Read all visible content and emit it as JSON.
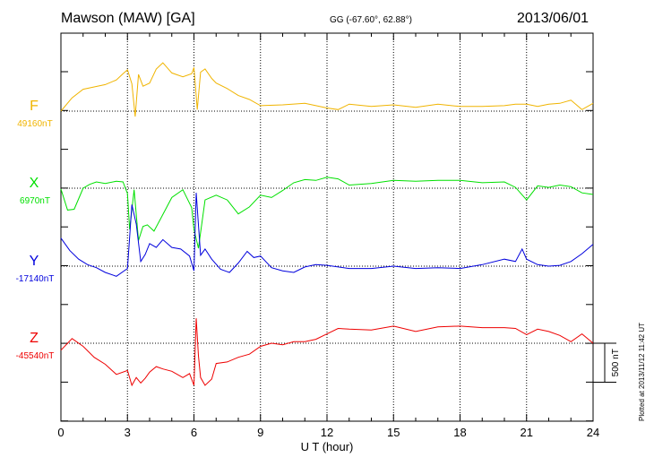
{
  "header": {
    "station": "Mawson (MAW)  [GA]",
    "coords": "GG (-67.60°,  62.88°)",
    "date": "2013/06/01"
  },
  "plotted_note": "Plotted at 2013/11/12 11:42 UT",
  "colors": {
    "F": "#f0b400",
    "X": "#00e000",
    "Y": "#0000dd",
    "Z": "#ee0000",
    "axis": "#000000"
  },
  "chart_data": {
    "type": "line",
    "title": "Mawson (MAW)  [GA]",
    "xlabel": "U T (hour)",
    "ylabel": "",
    "xlim": [
      0,
      24
    ],
    "x_ticks": [
      0,
      3,
      6,
      9,
      12,
      15,
      18,
      21,
      24
    ],
    "x_tick_labels": [
      "0",
      "3",
      "6",
      "9",
      "12",
      "15",
      "18",
      "21",
      "24"
    ],
    "scale_bar": {
      "label": "500 nT",
      "value_nT": 500
    },
    "grid": "dotted",
    "y_unit_nT_per_panel": 1000,
    "series": [
      {
        "name": "F",
        "baseline_label": "49160nT",
        "baseline_nT": 49160,
        "x": [
          0,
          0.5,
          1,
          1.5,
          2,
          2.5,
          2.8,
          3,
          3.2,
          3.35,
          3.5,
          3.7,
          4,
          4.3,
          4.6,
          5,
          5.5,
          5.9,
          6,
          6.15,
          6.3,
          6.5,
          6.8,
          7,
          7.5,
          8,
          8.5,
          9,
          10,
          11,
          12,
          12.5,
          13,
          14,
          15,
          16,
          17,
          18,
          19,
          20,
          20.5,
          21,
          21.5,
          22,
          22.5,
          23,
          23.5,
          24
        ],
        "y": [
          49160,
          49330,
          49440,
          49470,
          49500,
          49560,
          49640,
          49690,
          49510,
          49090,
          49630,
          49480,
          49520,
          49700,
          49780,
          49650,
          49600,
          49640,
          49720,
          49180,
          49660,
          49700,
          49580,
          49520,
          49450,
          49360,
          49310,
          49230,
          49240,
          49260,
          49200,
          49180,
          49250,
          49220,
          49240,
          49210,
          49250,
          49220,
          49220,
          49230,
          49250,
          49250,
          49220,
          49250,
          49260,
          49300,
          49180,
          49260
        ]
      },
      {
        "name": "X",
        "baseline_label": "6970nT",
        "baseline_nT": 6970,
        "x": [
          0,
          0.3,
          0.6,
          1,
          1.3,
          1.6,
          2,
          2.5,
          2.8,
          3,
          3.1,
          3.3,
          3.5,
          3.7,
          3.9,
          4.2,
          4.5,
          5,
          5.5,
          5.9,
          6,
          6.2,
          6.5,
          7,
          7.5,
          8,
          8.5,
          9,
          9.5,
          10,
          10.5,
          11,
          11.5,
          12,
          12.5,
          13,
          14,
          15,
          16,
          17,
          18,
          19,
          20,
          20.5,
          21,
          21.5,
          22,
          22.5,
          23,
          23.5,
          24
        ],
        "y": [
          6960,
          6690,
          6700,
          6970,
          7020,
          7050,
          7030,
          7060,
          7050,
          6900,
          6440,
          6950,
          6300,
          6480,
          6500,
          6420,
          6580,
          6850,
          6950,
          6720,
          6440,
          6200,
          6820,
          6880,
          6820,
          6640,
          6730,
          6880,
          6850,
          6940,
          7040,
          7080,
          7070,
          7110,
          7090,
          7010,
          7030,
          7070,
          7060,
          7070,
          7070,
          7040,
          7050,
          6980,
          6820,
          7000,
          6980,
          7010,
          6990,
          6910,
          6890
        ]
      },
      {
        "name": "Y",
        "baseline_label": "-17140nT",
        "baseline_nT": -17140,
        "x": [
          0,
          0.4,
          0.8,
          1.2,
          1.6,
          2,
          2.5,
          3,
          3.2,
          3.4,
          3.6,
          3.8,
          4,
          4.3,
          4.6,
          5,
          5.4,
          5.8,
          6,
          6.1,
          6.3,
          6.5,
          6.8,
          7.2,
          7.6,
          8,
          8.4,
          8.7,
          9,
          9.5,
          10,
          10.5,
          11,
          11.5,
          12,
          13,
          14,
          15,
          16,
          17,
          18,
          19,
          20,
          20.5,
          20.8,
          21,
          21.5,
          22,
          22.5,
          23,
          23.5,
          24
        ],
        "y": [
          -16780,
          -16940,
          -17050,
          -17120,
          -17160,
          -17220,
          -17270,
          -17170,
          -16350,
          -16600,
          -17080,
          -16990,
          -16850,
          -16900,
          -16800,
          -16900,
          -16920,
          -17010,
          -17200,
          -16200,
          -17000,
          -16920,
          -17050,
          -17180,
          -17220,
          -17100,
          -16950,
          -17030,
          -17010,
          -17160,
          -17200,
          -17220,
          -17150,
          -17120,
          -17130,
          -17170,
          -17170,
          -17140,
          -17170,
          -17160,
          -17170,
          -17120,
          -17050,
          -17080,
          -16920,
          -17050,
          -17120,
          -17140,
          -17130,
          -17080,
          -16980,
          -16860
        ]
      },
      {
        "name": "Z",
        "baseline_label": "-45540nT",
        "baseline_nT": -45540,
        "x": [
          0,
          0.5,
          1,
          1.5,
          2,
          2.5,
          3,
          3.2,
          3.4,
          3.6,
          3.8,
          4,
          4.3,
          4.6,
          5,
          5.5,
          5.8,
          6,
          6.1,
          6.2,
          6.3,
          6.5,
          6.8,
          7,
          7.5,
          8,
          8.5,
          9,
          9.5,
          10,
          10.5,
          11,
          11.5,
          12,
          12.5,
          13,
          14,
          15,
          16,
          17,
          18,
          19,
          20,
          20.5,
          21,
          21.5,
          22,
          22.5,
          23,
          23.5,
          24
        ],
        "y": [
          -45630,
          -45480,
          -45580,
          -45720,
          -45810,
          -45940,
          -45890,
          -46080,
          -45980,
          -46050,
          -45990,
          -45910,
          -45840,
          -45870,
          -45900,
          -45980,
          -45930,
          -46080,
          -45220,
          -45700,
          -45980,
          -46080,
          -46000,
          -45800,
          -45780,
          -45720,
          -45680,
          -45580,
          -45540,
          -45560,
          -45520,
          -45520,
          -45490,
          -45420,
          -45350,
          -45360,
          -45370,
          -45320,
          -45390,
          -45330,
          -45320,
          -45340,
          -45340,
          -45350,
          -45430,
          -45360,
          -45390,
          -45440,
          -45520,
          -45420,
          -45540
        ]
      }
    ]
  }
}
